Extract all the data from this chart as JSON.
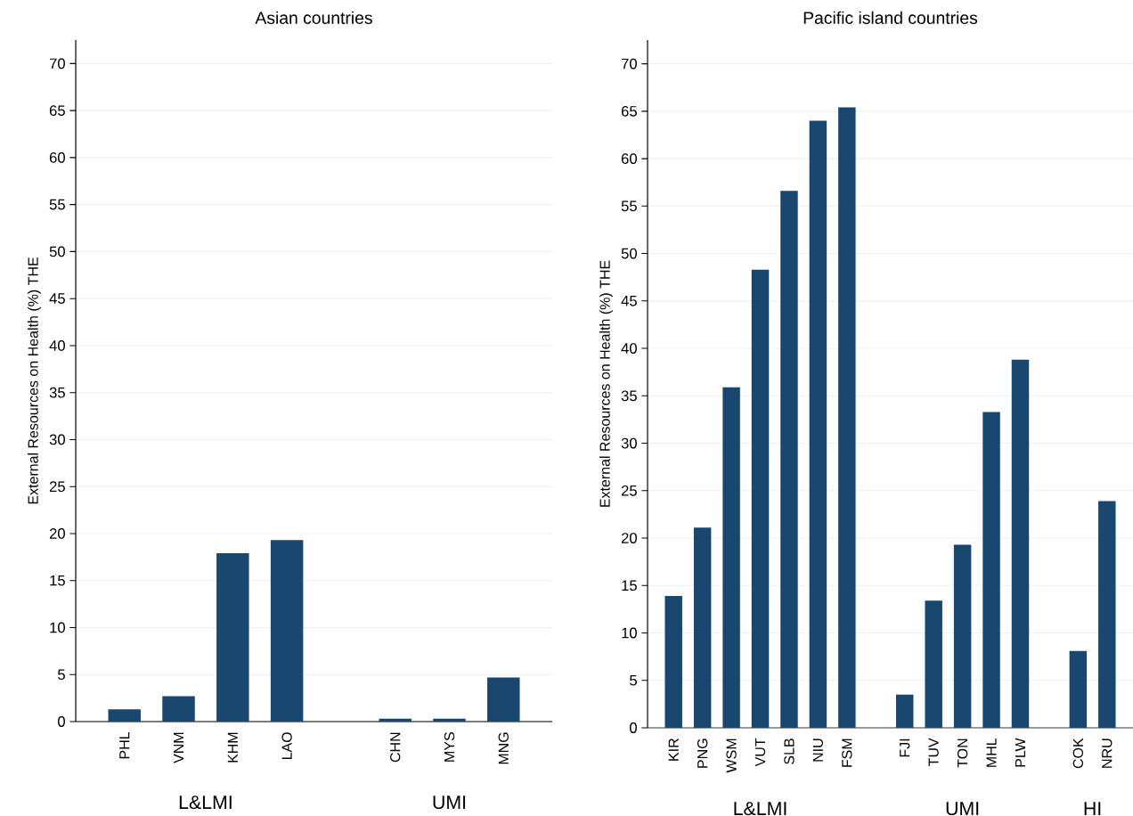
{
  "chart_data": [
    {
      "type": "bar",
      "title": "Asian countries",
      "ylabel": "External Resources on Health (%) THE",
      "categories": [
        "PHL",
        "VNM",
        "KHM",
        "LAO",
        null,
        "CHN",
        "MYS",
        "MNG"
      ],
      "values": [
        1.3,
        2.7,
        17.9,
        19.3,
        null,
        0.3,
        0.3,
        4.7
      ],
      "color": "#1a476f",
      "ylim": [
        0,
        72.5
      ],
      "yticks": [
        0,
        5,
        10,
        15,
        20,
        25,
        30,
        35,
        40,
        45,
        50,
        55,
        60,
        65,
        70
      ],
      "grid": "y",
      "annotations": [
        "L&LMI",
        "UMI"
      ]
    },
    {
      "type": "bar",
      "title": "Pacific island countries",
      "ylabel": "External Resources on Health (%) THE",
      "categories": [
        "KIR",
        "PNG",
        "WSM",
        "VUT",
        "SLB",
        "NIU",
        "FSM",
        null,
        "FJI",
        "TUV",
        "TON",
        "MHL",
        "PLW",
        null,
        "COK",
        "NRU"
      ],
      "values": [
        13.9,
        21.1,
        35.9,
        48.3,
        56.6,
        64.0,
        65.4,
        null,
        3.5,
        13.4,
        19.3,
        33.3,
        38.8,
        null,
        8.1,
        23.9
      ],
      "color": "#1a476f",
      "ylim": [
        0,
        72.5
      ],
      "yticks": [
        0,
        5,
        10,
        15,
        20,
        25,
        30,
        35,
        40,
        45,
        50,
        55,
        60,
        65,
        70
      ],
      "grid": "y",
      "annotations": [
        "L&LMI",
        "UMI",
        "HI"
      ]
    }
  ]
}
